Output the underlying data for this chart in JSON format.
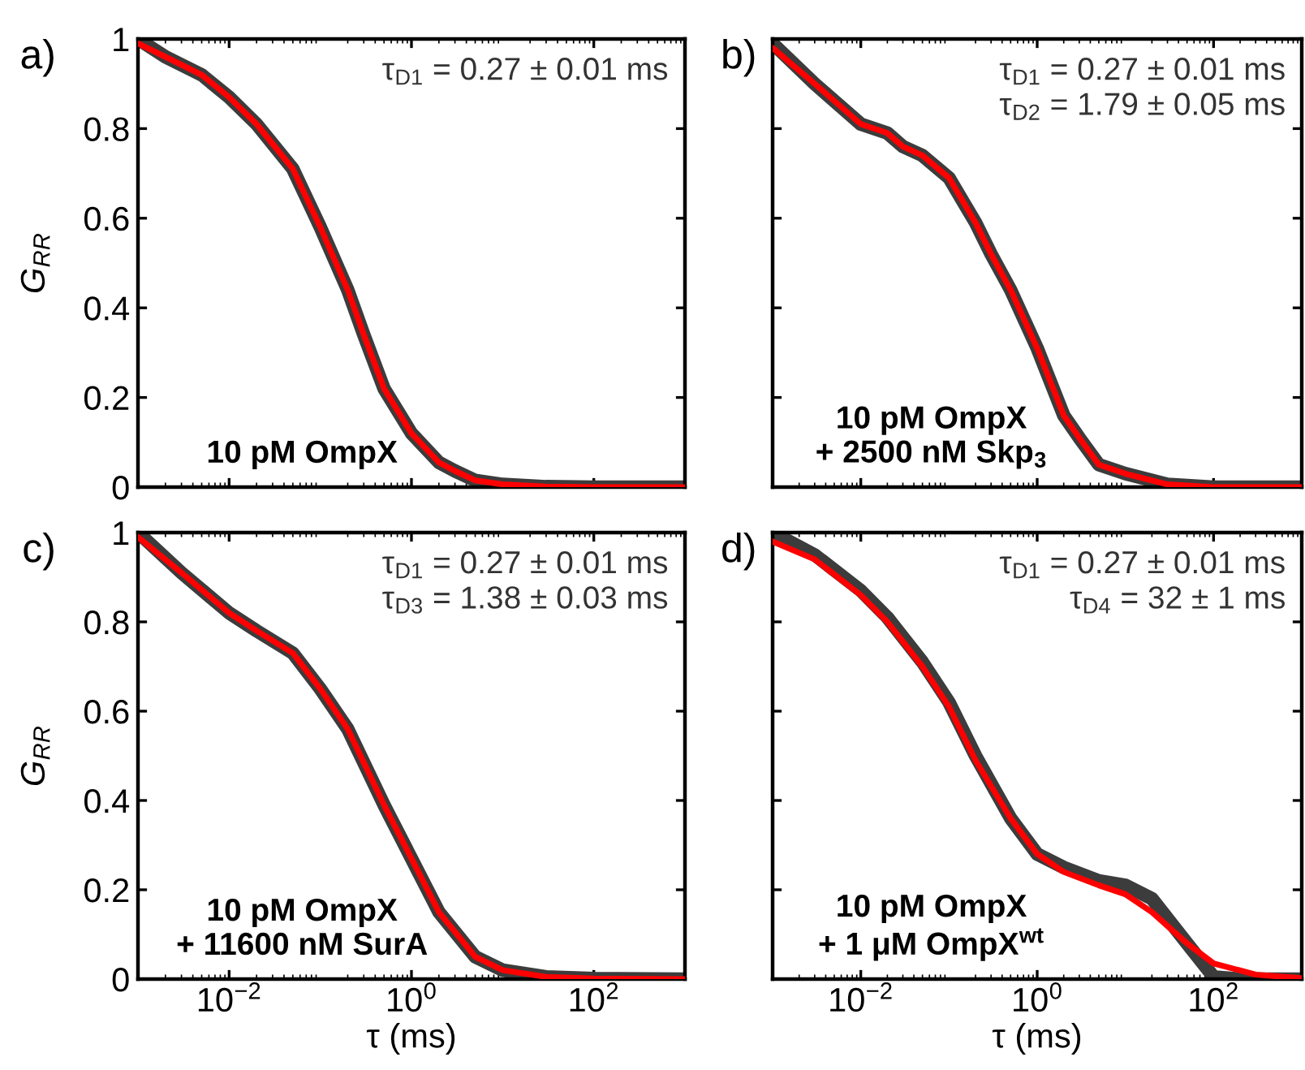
{
  "chart_data": [
    {
      "type": "line",
      "ylabel": "G$_{RR}$",
      "xlim": [
        0.001,
        1000
      ],
      "ylim": [
        0,
        1
      ],
      "log": "x",
      "tick_labels": "y",
      "xticks": [
        {
          "value": 0.01,
          "label": null
        },
        {
          "value": 1,
          "label": null
        },
        {
          "value": 100,
          "label": null
        }
      ],
      "yticks": [
        0,
        0.2,
        0.4,
        0.6,
        0.8,
        1
      ],
      "annotations": [
        "a)",
        "τ$_{D1}$ = 0.27 ± 0.01 ms",
        "10 pM OmpX"
      ],
      "x": [
        0.001,
        0.002,
        0.005,
        0.01,
        0.02,
        0.05,
        0.1,
        0.2,
        0.3,
        0.5,
        1,
        2,
        3,
        5,
        10,
        30,
        100,
        1000
      ],
      "series": [
        {
          "color": "#3c3c3c",
          "values": [
            1.0,
            0.96,
            0.92,
            0.87,
            0.81,
            0.71,
            0.58,
            0.44,
            0.34,
            0.22,
            0.12,
            0.055,
            0.036,
            0.015,
            0.006,
            0.001,
            0,
            0
          ]
        },
        {
          "color": "#ff0000",
          "values": [
            0.99,
            0.96,
            0.92,
            0.87,
            0.81,
            0.71,
            0.58,
            0.44,
            0.34,
            0.22,
            0.12,
            0.055,
            0.036,
            0.015,
            0.006,
            0.001,
            0,
            0
          ]
        }
      ]
    },
    {
      "type": "line",
      "xlim": [
        0.001,
        1000
      ],
      "ylim": [
        0,
        1
      ],
      "log": "x",
      "tick_labels": false,
      "xticks": [
        {
          "value": 0.01,
          "label": null
        },
        {
          "value": 1,
          "label": null
        },
        {
          "value": 100,
          "label": null
        }
      ],
      "yticks": [
        0,
        0.2,
        0.4,
        0.6,
        0.8,
        1
      ],
      "annotations": [
        "b)",
        "τ$_{D1}$ = 0.27 ± 0.01 ms\nτ$_{D2}$ = 1.79 ± 0.05 ms",
        "10 pM OmpX\n+ 2500 nM Skp$_{3}$"
      ],
      "x": [
        0.001,
        0.003,
        0.01,
        0.02,
        0.03,
        0.05,
        0.1,
        0.2,
        0.3,
        0.5,
        1,
        2,
        3,
        5,
        10,
        30,
        100,
        1000
      ],
      "series": [
        {
          "color": "#3c3c3c",
          "values": [
            0.99,
            0.9,
            0.81,
            0.79,
            0.76,
            0.74,
            0.69,
            0.59,
            0.52,
            0.44,
            0.31,
            0.16,
            0.11,
            0.05,
            0.03,
            0.006,
            0,
            0
          ]
        },
        {
          "color": "#ff0000",
          "values": [
            0.98,
            0.9,
            0.81,
            0.79,
            0.76,
            0.74,
            0.69,
            0.59,
            0.52,
            0.44,
            0.31,
            0.16,
            0.11,
            0.05,
            0.03,
            0.006,
            0,
            0
          ]
        }
      ]
    },
    {
      "type": "line",
      "xlabel": "τ (ms)",
      "ylabel": "G$_{RR}$",
      "xlim": [
        0.001,
        1000
      ],
      "ylim": [
        0,
        1
      ],
      "log": "x",
      "xticks": [
        {
          "value": 0.01,
          "label": "10$^{−2}$"
        },
        {
          "value": 1,
          "label": "10$^{0}$"
        },
        {
          "value": 100,
          "label": "10$^{2}$"
        }
      ],
      "yticks": [
        0,
        0.2,
        0.4,
        0.6,
        0.8,
        1
      ],
      "annotations": [
        "c)",
        "τ$_{D1}$ = 0.27 ± 0.01 ms\nτ$_{D3}$ = 1.38 ± 0.03 ms",
        "10 pM OmpX\n+ 11600 nM SurA"
      ],
      "x": [
        0.001,
        0.003,
        0.01,
        0.02,
        0.05,
        0.1,
        0.2,
        0.5,
        1,
        2,
        5,
        10,
        30,
        100,
        1000
      ],
      "series": [
        {
          "color": "#3c3c3c",
          "values": [
            1.0,
            0.91,
            0.82,
            0.78,
            0.73,
            0.65,
            0.56,
            0.39,
            0.27,
            0.15,
            0.05,
            0.02,
            0.005,
            0.001,
            0
          ]
        },
        {
          "color": "#ff0000",
          "values": [
            0.99,
            0.91,
            0.82,
            0.78,
            0.73,
            0.65,
            0.56,
            0.39,
            0.27,
            0.15,
            0.05,
            0.02,
            0.005,
            0.001,
            0
          ]
        }
      ]
    },
    {
      "type": "line",
      "xlabel": "τ (ms)",
      "xlim": [
        0.001,
        1000
      ],
      "ylim": [
        0,
        1
      ],
      "log": "x",
      "tick_labels": "x",
      "xticks": [
        {
          "value": 0.01,
          "label": "10$^{−2}$"
        },
        {
          "value": 1,
          "label": "10$^{0}$"
        },
        {
          "value": 100,
          "label": "10$^{2}$"
        }
      ],
      "yticks": [
        0,
        0.2,
        0.4,
        0.6,
        0.8,
        1
      ],
      "annotations": [
        "d)",
        "τ$_{D1}$ = 0.27 ± 0.01 ms\nτ$_{D4}$ = 32 ± 1 ms",
        "10 pM OmpX\n+ 1 μM OmpX$^{wt}$"
      ],
      "series": [
        {
          "color": "#3c3c3c",
          "x": [
            0.001,
            0.003,
            0.01,
            0.02,
            0.05,
            0.1,
            0.2,
            0.5,
            1,
            2,
            5,
            10,
            20,
            50,
            100,
            200,
            1000
          ],
          "values": [
            1.0,
            0.95,
            0.87,
            0.81,
            0.71,
            0.62,
            0.5,
            0.36,
            0.28,
            0.25,
            0.22,
            0.21,
            0.18,
            0.08,
            0.005,
            0,
            0
          ]
        },
        {
          "color": "#ff0000",
          "x": [
            0.001,
            0.003,
            0.01,
            0.02,
            0.05,
            0.1,
            0.2,
            0.5,
            1,
            2,
            5,
            10,
            20,
            50,
            100,
            300,
            1000
          ],
          "values": [
            0.98,
            0.94,
            0.86,
            0.8,
            0.7,
            0.61,
            0.49,
            0.36,
            0.28,
            0.24,
            0.21,
            0.19,
            0.15,
            0.08,
            0.035,
            0.01,
            0.002
          ]
        }
      ]
    }
  ]
}
